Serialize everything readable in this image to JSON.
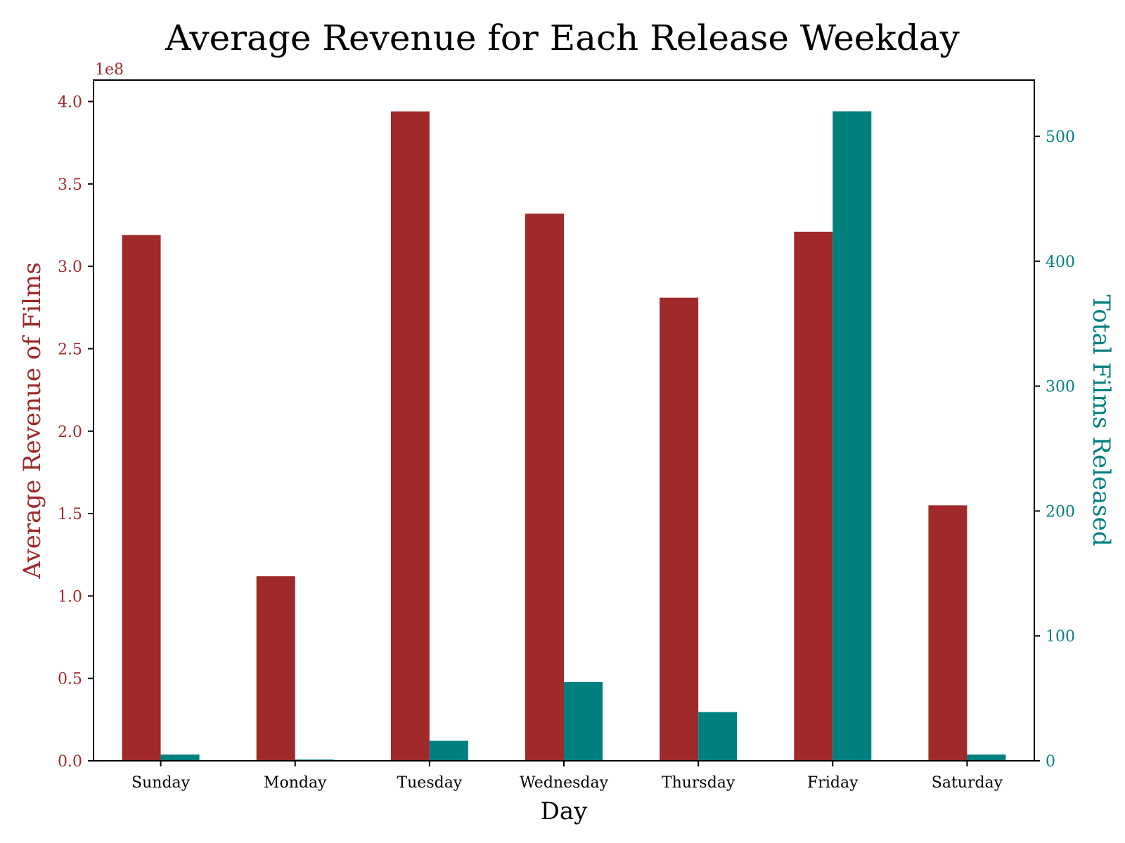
{
  "chart_data": {
    "type": "bar",
    "title": "Average Revenue for Each Release Weekday",
    "xlabel": "Day",
    "categories": [
      "Sunday",
      "Monday",
      "Tuesday",
      "Wednesday",
      "Thursday",
      "Friday",
      "Saturday"
    ],
    "left_axis": {
      "label": "Average Revenue of Films",
      "multiplier_label": "1e8",
      "range": [
        0,
        4.13
      ],
      "ticks": [
        "0.0",
        "0.5",
        "1.0",
        "1.5",
        "2.0",
        "2.5",
        "3.0",
        "3.5",
        "4.0"
      ],
      "tick_values": [
        0,
        0.5,
        1.0,
        1.5,
        2.0,
        2.5,
        3.0,
        3.5,
        4.0
      ],
      "color": "#a0292a"
    },
    "right_axis": {
      "label": "Total Films Released",
      "range": [
        0,
        545
      ],
      "ticks": [
        "0",
        "100",
        "200",
        "300",
        "400",
        "500"
      ],
      "tick_values": [
        0,
        100,
        200,
        300,
        400,
        500
      ],
      "color": "#007f7f"
    },
    "series": [
      {
        "axis": "left",
        "color": "#a0292a",
        "values": [
          319000000,
          112000000,
          394000000,
          332000000,
          281000000,
          321000000,
          155000000
        ]
      },
      {
        "axis": "right",
        "color": "#007f7f",
        "values": [
          5,
          1,
          16,
          63,
          39,
          520,
          5
        ]
      }
    ],
    "grid": false
  }
}
